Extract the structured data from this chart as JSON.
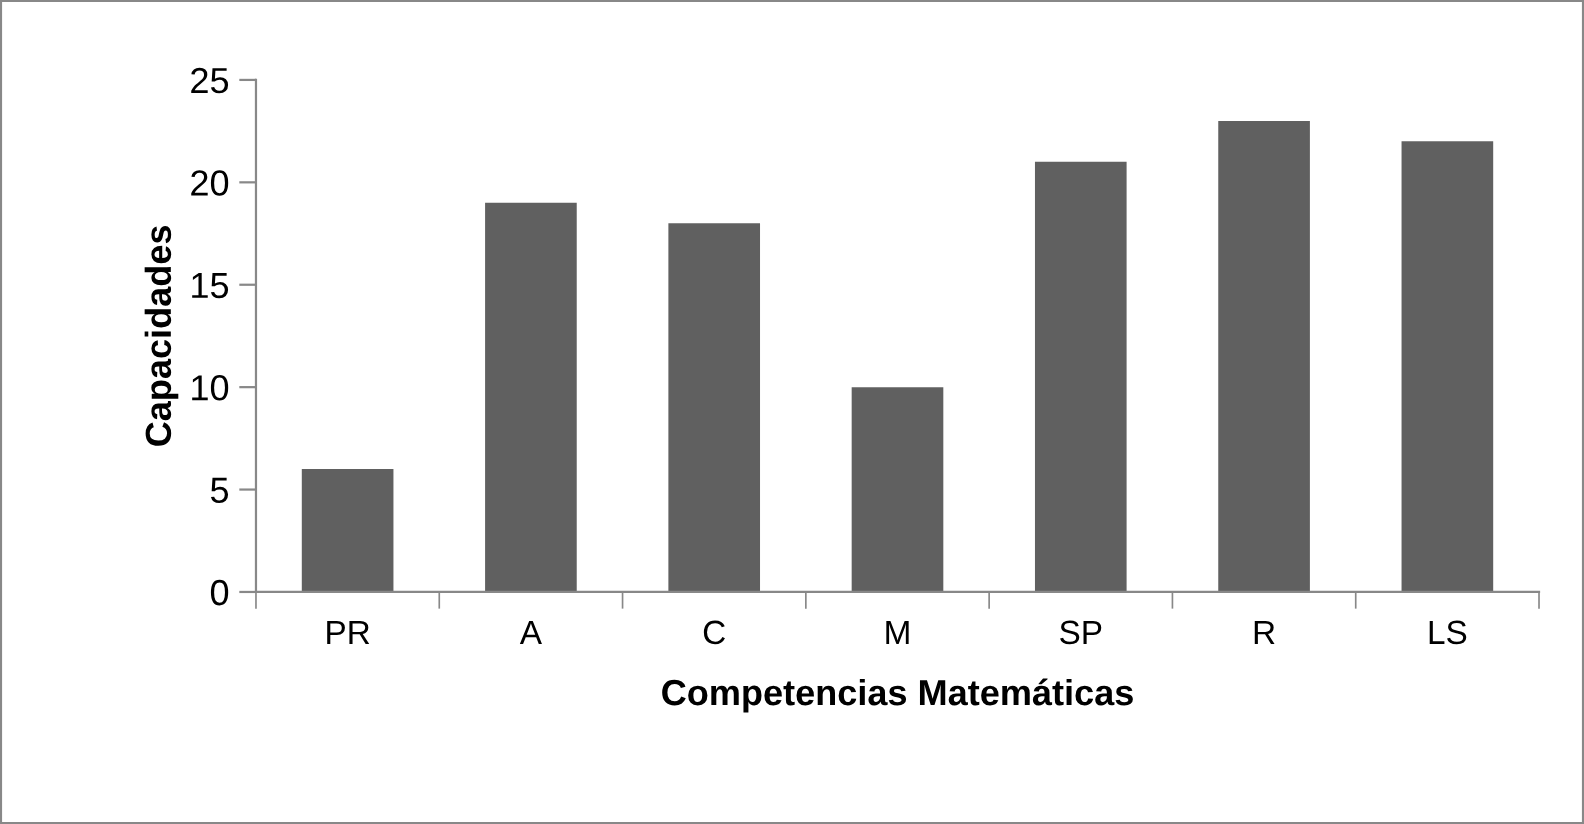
{
  "chart_data": {
    "type": "bar",
    "xlabel": "Competencias Matemáticas",
    "ylabel": "Capacidades",
    "categories": [
      "PR",
      "A",
      "C",
      "M",
      "SP",
      "R",
      "LS"
    ],
    "values": [
      6,
      19,
      18,
      10,
      21,
      23,
      22
    ],
    "color": "#606060",
    "ylim": [
      0,
      25
    ],
    "yticks": [
      0,
      5,
      10,
      15,
      20,
      25
    ],
    "grid": false,
    "legend": false
  }
}
